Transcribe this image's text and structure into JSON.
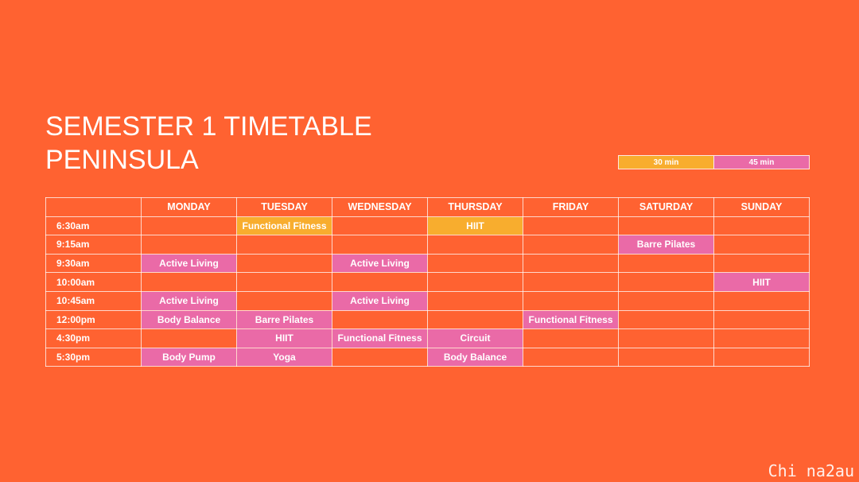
{
  "title": {
    "line1": "SEMESTER 1 TIMETABLE",
    "line2": "PENINSULA"
  },
  "legend": {
    "items": [
      {
        "label": "30 min",
        "color": "#F8AD2E"
      },
      {
        "label": "45 min",
        "color": "#EA6AA7"
      }
    ]
  },
  "colors": {
    "background": "#FF6231",
    "class_30min": "#F8AD2E",
    "class_45min": "#EA6AA7"
  },
  "timetable": {
    "corner": "",
    "days": [
      "MONDAY",
      "TUESDAY",
      "WEDNESDAY",
      "THURSDAY",
      "FRIDAY",
      "SATURDAY",
      "SUNDAY"
    ],
    "rows": [
      {
        "time": "6:30am",
        "cells": [
          null,
          {
            "label": "Functional Fitness",
            "duration": "30 min"
          },
          null,
          {
            "label": "HIIT",
            "duration": "30 min"
          },
          null,
          null,
          null
        ]
      },
      {
        "time": "9:15am",
        "cells": [
          null,
          null,
          null,
          null,
          null,
          {
            "label": "Barre Pilates",
            "duration": "45 min"
          },
          null
        ]
      },
      {
        "time": "9:30am",
        "cells": [
          {
            "label": "Active Living",
            "duration": "45 min"
          },
          null,
          {
            "label": "Active Living",
            "duration": "45 min"
          },
          null,
          null,
          null,
          null
        ]
      },
      {
        "time": "10:00am",
        "cells": [
          null,
          null,
          null,
          null,
          null,
          null,
          {
            "label": "HIIT",
            "duration": "45 min"
          }
        ]
      },
      {
        "time": "10:45am",
        "cells": [
          {
            "label": "Active Living",
            "duration": "45 min"
          },
          null,
          {
            "label": "Active Living",
            "duration": "45 min"
          },
          null,
          null,
          null,
          null
        ]
      },
      {
        "time": "12:00pm",
        "cells": [
          {
            "label": "Body Balance",
            "duration": "45 min"
          },
          {
            "label": "Barre Pilates",
            "duration": "45 min"
          },
          null,
          null,
          {
            "label": "Functional Fitness",
            "duration": "45 min"
          },
          null,
          null
        ]
      },
      {
        "time": "4:30pm",
        "cells": [
          null,
          {
            "label": "HIIT",
            "duration": "45 min"
          },
          {
            "label": "Functional Fitness",
            "duration": "45 min"
          },
          {
            "label": "Circuit",
            "duration": "45 min"
          },
          null,
          null,
          null
        ]
      },
      {
        "time": "5:30pm",
        "cells": [
          {
            "label": "Body Pump",
            "duration": "45 min"
          },
          {
            "label": "Yoga",
            "duration": "45 min"
          },
          null,
          {
            "label": "Body Balance",
            "duration": "45 min"
          },
          null,
          null,
          null
        ]
      }
    ]
  },
  "watermark": "Chi na2au"
}
